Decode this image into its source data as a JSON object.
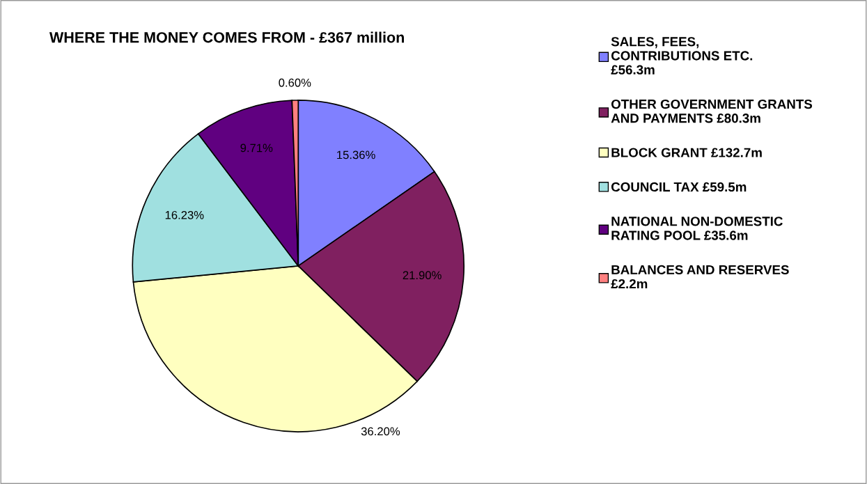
{
  "chart_data": {
    "type": "pie",
    "title": "WHERE THE MONEY COMES FROM - £367 million",
    "categories": [
      "SALES, FEES, CONTRIBUTIONS ETC. £56.3m",
      "OTHER GOVERNMENT GRANTS AND PAYMENTS £80.3m",
      "BLOCK GRANT £132.7m",
      "COUNCIL TAX £59.5m",
      "NATIONAL NON-DOMESTIC RATING POOL £35.6m",
      "BALANCES AND RESERVES £2.2m"
    ],
    "values": [
      15.36,
      21.9,
      36.2,
      16.23,
      9.71,
      0.6
    ],
    "value_labels": [
      "15.36%",
      "21.90%",
      "36.20%",
      "16.23%",
      "9.71%",
      "0.60%"
    ],
    "colors": [
      "#8080ff",
      "#802060",
      "#ffffc0",
      "#a0e0e0",
      "#600080",
      "#ff8080"
    ],
    "legend": "right"
  }
}
